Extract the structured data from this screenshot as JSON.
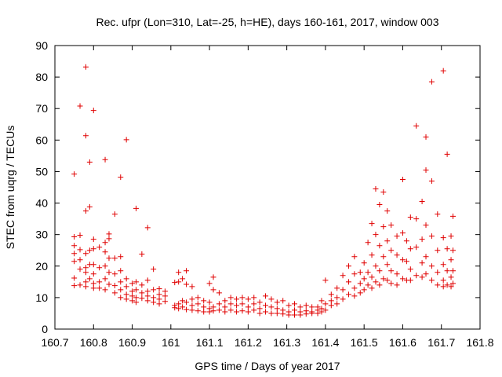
{
  "chart_data": {
    "type": "scatter",
    "title": "Rec. ufpr (Lon=310, Lat=-25, h=HE), days 160-161, 2017, window 003",
    "xlabel": "GPS time / Days of year 2017",
    "ylabel": "STEC from uqrg / TECUs",
    "xlim": [
      160.7,
      161.8
    ],
    "ylim": [
      0,
      90
    ],
    "xticks": [
      160.7,
      160.8,
      160.9,
      161.0,
      161.1,
      161.2,
      161.3,
      161.4,
      161.5,
      161.6,
      161.7,
      161.8
    ],
    "xtick_labels": [
      "160.7",
      "160.8",
      "160.9",
      "161",
      "161.1",
      "161.2",
      "161.3",
      "161.4",
      "161.5",
      "161.6",
      "161.7",
      "161.8"
    ],
    "yticks": [
      0,
      10,
      20,
      30,
      40,
      50,
      60,
      70,
      80,
      90
    ],
    "ytick_labels": [
      "0",
      "10",
      "20",
      "30",
      "40",
      "50",
      "60",
      "70",
      "80",
      "90"
    ],
    "grid": false,
    "marker": "+",
    "color": "#e00000",
    "points": [
      [
        160.75,
        49.2
      ],
      [
        160.75,
        29.3
      ],
      [
        160.75,
        26.5
      ],
      [
        160.75,
        24.0
      ],
      [
        160.75,
        21.5
      ],
      [
        160.75,
        16.2
      ],
      [
        160.75,
        13.8
      ],
      [
        160.765,
        70.8
      ],
      [
        160.765,
        29.8
      ],
      [
        160.765,
        25.2
      ],
      [
        160.765,
        22.0
      ],
      [
        160.765,
        19.0
      ],
      [
        160.765,
        14.0
      ],
      [
        160.78,
        83.2
      ],
      [
        160.78,
        61.4
      ],
      [
        160.78,
        37.5
      ],
      [
        160.78,
        24.0
      ],
      [
        160.78,
        19.5
      ],
      [
        160.78,
        18.0
      ],
      [
        160.78,
        15.0
      ],
      [
        160.78,
        13.5
      ],
      [
        160.79,
        53.0
      ],
      [
        160.79,
        38.8
      ],
      [
        160.79,
        25.0
      ],
      [
        160.79,
        20.5
      ],
      [
        160.79,
        16.0
      ],
      [
        160.8,
        69.4
      ],
      [
        160.8,
        28.5
      ],
      [
        160.8,
        25.5
      ],
      [
        160.8,
        20.5
      ],
      [
        160.8,
        17.5
      ],
      [
        160.8,
        14.5
      ],
      [
        160.8,
        13.0
      ],
      [
        160.815,
        26.0
      ],
      [
        160.815,
        19.5
      ],
      [
        160.815,
        15.0
      ],
      [
        160.815,
        13.0
      ],
      [
        160.83,
        53.8
      ],
      [
        160.83,
        27.5
      ],
      [
        160.83,
        24.5
      ],
      [
        160.83,
        20.0
      ],
      [
        160.83,
        16.0
      ],
      [
        160.83,
        12.5
      ],
      [
        160.84,
        30.2
      ],
      [
        160.84,
        28.7
      ],
      [
        160.84,
        22.5
      ],
      [
        160.84,
        18.0
      ],
      [
        160.84,
        14.2
      ],
      [
        160.855,
        36.5
      ],
      [
        160.855,
        22.5
      ],
      [
        160.855,
        17.5
      ],
      [
        160.855,
        13.8
      ],
      [
        160.855,
        11.5
      ],
      [
        160.87,
        48.2
      ],
      [
        160.87,
        23.0
      ],
      [
        160.87,
        18.5
      ],
      [
        160.87,
        15.0
      ],
      [
        160.87,
        12.5
      ],
      [
        160.87,
        10.0
      ],
      [
        160.885,
        60.1
      ],
      [
        160.885,
        16.0
      ],
      [
        160.885,
        13.5
      ],
      [
        160.885,
        11.0
      ],
      [
        160.885,
        9.5
      ],
      [
        160.9,
        14.5
      ],
      [
        160.9,
        12.0
      ],
      [
        160.9,
        10.5
      ],
      [
        160.9,
        9.0
      ],
      [
        160.91,
        38.3
      ],
      [
        160.91,
        15.0
      ],
      [
        160.91,
        12.5
      ],
      [
        160.91,
        10.0
      ],
      [
        160.91,
        8.5
      ],
      [
        160.925,
        23.8
      ],
      [
        160.925,
        14.0
      ],
      [
        160.925,
        11.5
      ],
      [
        160.925,
        9.8
      ],
      [
        160.94,
        32.2
      ],
      [
        160.94,
        15.5
      ],
      [
        160.94,
        12.0
      ],
      [
        160.94,
        10.5
      ],
      [
        160.94,
        9.0
      ],
      [
        160.955,
        19.0
      ],
      [
        160.955,
        12.5
      ],
      [
        160.955,
        10.0
      ],
      [
        160.955,
        8.5
      ],
      [
        160.97,
        12.8
      ],
      [
        160.97,
        11.0
      ],
      [
        160.97,
        9.5
      ],
      [
        160.97,
        8.0
      ],
      [
        160.985,
        12.0
      ],
      [
        160.985,
        10.5
      ],
      [
        160.985,
        8.8
      ],
      [
        161.01,
        14.8
      ],
      [
        161.01,
        7.5
      ],
      [
        161.01,
        6.8
      ],
      [
        161.02,
        18.0
      ],
      [
        161.02,
        15.0
      ],
      [
        161.02,
        8.0
      ],
      [
        161.02,
        6.5
      ],
      [
        161.03,
        16.0
      ],
      [
        161.03,
        9.0
      ],
      [
        161.03,
        7.0
      ],
      [
        161.04,
        18.5
      ],
      [
        161.04,
        14.2
      ],
      [
        161.04,
        8.5
      ],
      [
        161.04,
        6.2
      ],
      [
        161.055,
        13.5
      ],
      [
        161.055,
        9.5
      ],
      [
        161.055,
        7.5
      ],
      [
        161.055,
        6.0
      ],
      [
        161.07,
        10.0
      ],
      [
        161.07,
        8.0
      ],
      [
        161.07,
        5.8
      ],
      [
        161.085,
        9.0
      ],
      [
        161.085,
        7.0
      ],
      [
        161.085,
        5.5
      ],
      [
        161.1,
        14.5
      ],
      [
        161.1,
        8.5
      ],
      [
        161.1,
        6.5
      ],
      [
        161.1,
        5.5
      ],
      [
        161.11,
        16.5
      ],
      [
        161.11,
        12.5
      ],
      [
        161.11,
        7.0
      ],
      [
        161.11,
        5.8
      ],
      [
        161.125,
        11.5
      ],
      [
        161.125,
        8.0
      ],
      [
        161.125,
        6.0
      ],
      [
        161.14,
        9.0
      ],
      [
        161.14,
        7.0
      ],
      [
        161.14,
        5.5
      ],
      [
        161.155,
        10.0
      ],
      [
        161.155,
        8.0
      ],
      [
        161.155,
        6.0
      ],
      [
        161.17,
        9.5
      ],
      [
        161.17,
        7.5
      ],
      [
        161.17,
        5.5
      ],
      [
        161.185,
        10.0
      ],
      [
        161.185,
        8.0
      ],
      [
        161.185,
        5.8
      ],
      [
        161.2,
        9.5
      ],
      [
        161.2,
        7.0
      ],
      [
        161.2,
        5.5
      ],
      [
        161.215,
        10.0
      ],
      [
        161.215,
        8.0
      ],
      [
        161.215,
        6.0
      ],
      [
        161.23,
        8.5
      ],
      [
        161.23,
        6.5
      ],
      [
        161.23,
        5.0
      ],
      [
        161.245,
        10.5
      ],
      [
        161.245,
        7.5
      ],
      [
        161.245,
        5.5
      ],
      [
        161.26,
        9.5
      ],
      [
        161.26,
        7.0
      ],
      [
        161.26,
        5.0
      ],
      [
        161.275,
        8.5
      ],
      [
        161.275,
        6.5
      ],
      [
        161.275,
        5.0
      ],
      [
        161.29,
        9.0
      ],
      [
        161.29,
        6.0
      ],
      [
        161.29,
        4.8
      ],
      [
        161.305,
        7.5
      ],
      [
        161.305,
        5.5
      ],
      [
        161.305,
        4.5
      ],
      [
        161.32,
        8.0
      ],
      [
        161.32,
        6.0
      ],
      [
        161.32,
        4.5
      ],
      [
        161.335,
        7.0
      ],
      [
        161.335,
        5.5
      ],
      [
        161.335,
        4.5
      ],
      [
        161.35,
        7.5
      ],
      [
        161.35,
        5.8
      ],
      [
        161.35,
        4.8
      ],
      [
        161.365,
        7.0
      ],
      [
        161.365,
        5.5
      ],
      [
        161.365,
        5.0
      ],
      [
        161.38,
        7.0
      ],
      [
        161.38,
        6.0
      ],
      [
        161.38,
        5.0
      ],
      [
        161.39,
        9.0
      ],
      [
        161.39,
        6.5
      ],
      [
        161.39,
        5.5
      ],
      [
        161.4,
        15.5
      ],
      [
        161.4,
        8.0
      ],
      [
        161.4,
        6.0
      ],
      [
        161.415,
        11.0
      ],
      [
        161.415,
        9.0
      ],
      [
        161.415,
        7.5
      ],
      [
        161.43,
        13.0
      ],
      [
        161.43,
        10.0
      ],
      [
        161.43,
        8.0
      ],
      [
        161.445,
        17.0
      ],
      [
        161.445,
        12.5
      ],
      [
        161.445,
        9.5
      ],
      [
        161.46,
        20.0
      ],
      [
        161.46,
        15.0
      ],
      [
        161.46,
        11.0
      ],
      [
        161.475,
        23.0
      ],
      [
        161.475,
        17.5
      ],
      [
        161.475,
        13.0
      ],
      [
        161.475,
        10.5
      ],
      [
        161.49,
        18.0
      ],
      [
        161.49,
        14.5
      ],
      [
        161.49,
        11.5
      ],
      [
        161.5,
        21.0
      ],
      [
        161.5,
        16.0
      ],
      [
        161.5,
        12.5
      ],
      [
        161.51,
        27.5
      ],
      [
        161.51,
        18.0
      ],
      [
        161.51,
        14.0
      ],
      [
        161.52,
        33.5
      ],
      [
        161.52,
        23.5
      ],
      [
        161.52,
        16.5
      ],
      [
        161.52,
        13.0
      ],
      [
        161.53,
        44.5
      ],
      [
        161.53,
        30.0
      ],
      [
        161.53,
        20.0
      ],
      [
        161.53,
        15.0
      ],
      [
        161.54,
        39.5
      ],
      [
        161.54,
        26.5
      ],
      [
        161.54,
        18.5
      ],
      [
        161.54,
        14.0
      ],
      [
        161.55,
        43.5
      ],
      [
        161.55,
        32.5
      ],
      [
        161.55,
        23.0
      ],
      [
        161.55,
        16.0
      ],
      [
        161.56,
        37.5
      ],
      [
        161.56,
        28.0
      ],
      [
        161.56,
        20.5
      ],
      [
        161.56,
        15.5
      ],
      [
        161.57,
        33.0
      ],
      [
        161.57,
        25.0
      ],
      [
        161.57,
        18.5
      ],
      [
        161.57,
        14.5
      ],
      [
        161.585,
        29.5
      ],
      [
        161.585,
        23.5
      ],
      [
        161.585,
        17.5
      ],
      [
        161.585,
        14.0
      ],
      [
        161.6,
        47.5
      ],
      [
        161.6,
        30.5
      ],
      [
        161.6,
        22.0
      ],
      [
        161.6,
        16.0
      ],
      [
        161.61,
        28.0
      ],
      [
        161.61,
        21.5
      ],
      [
        161.61,
        15.5
      ],
      [
        161.62,
        35.5
      ],
      [
        161.62,
        25.5
      ],
      [
        161.62,
        19.0
      ],
      [
        161.62,
        15.5
      ],
      [
        161.635,
        64.5
      ],
      [
        161.635,
        35.0
      ],
      [
        161.635,
        26.0
      ],
      [
        161.635,
        17.0
      ],
      [
        161.65,
        40.5
      ],
      [
        161.65,
        28.5
      ],
      [
        161.65,
        21.0
      ],
      [
        161.65,
        16.5
      ],
      [
        161.66,
        61.0
      ],
      [
        161.66,
        50.5
      ],
      [
        161.66,
        33.0
      ],
      [
        161.66,
        23.0
      ],
      [
        161.66,
        17.5
      ],
      [
        161.675,
        78.5
      ],
      [
        161.675,
        47.0
      ],
      [
        161.675,
        29.5
      ],
      [
        161.675,
        20.0
      ],
      [
        161.675,
        15.5
      ],
      [
        161.69,
        36.5
      ],
      [
        161.69,
        25.0
      ],
      [
        161.69,
        18.0
      ],
      [
        161.69,
        14.0
      ],
      [
        161.705,
        82.0
      ],
      [
        161.705,
        29.0
      ],
      [
        161.705,
        20.5
      ],
      [
        161.705,
        15.5
      ],
      [
        161.705,
        13.5
      ],
      [
        161.715,
        55.5
      ],
      [
        161.715,
        25.5
      ],
      [
        161.715,
        18.5
      ],
      [
        161.715,
        14.0
      ],
      [
        161.725,
        29.5
      ],
      [
        161.725,
        22.0
      ],
      [
        161.725,
        16.5
      ],
      [
        161.725,
        13.5
      ],
      [
        161.73,
        35.8
      ],
      [
        161.73,
        25.0
      ],
      [
        161.73,
        18.5
      ],
      [
        161.73,
        14.5
      ]
    ]
  }
}
